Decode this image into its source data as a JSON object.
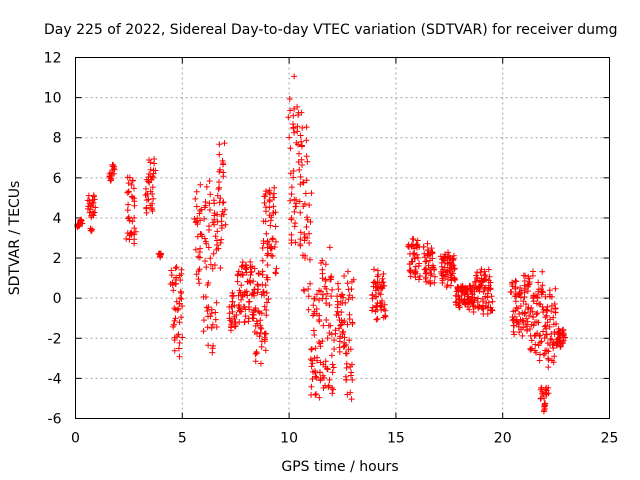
{
  "chart_data": {
    "type": "scatter",
    "title": "Day 225 of 2022, Sidereal Day-to-day VTEC variation (SDTVAR) for receiver dumg",
    "xlabel": "GPS time / hours",
    "ylabel": "SDTVAR / TECUs",
    "xlim": [
      0,
      25
    ],
    "ylim": [
      -6,
      12
    ],
    "x_ticks": [
      0,
      5,
      10,
      15,
      20,
      25
    ],
    "y_ticks": [
      -6,
      -4,
      -2,
      0,
      2,
      4,
      6,
      8,
      10,
      12
    ],
    "x_tick_labels": [
      "0",
      "5",
      "10",
      "15",
      "20",
      "25"
    ],
    "y_tick_labels": [
      "-6",
      "-4",
      "-2",
      "0",
      "2",
      "4",
      "6",
      "8",
      "10",
      "12"
    ],
    "grid": true,
    "marker": "+",
    "color": "#ff0000",
    "segments": [
      {
        "x0": 0.1,
        "x1": 0.3,
        "y": [
          3.5,
          4.0
        ]
      },
      {
        "x0": 0.6,
        "x1": 0.9,
        "y": [
          3.3,
          5.3
        ]
      },
      {
        "x0": 1.6,
        "x1": 1.8,
        "y": [
          5.8,
          6.8
        ]
      },
      {
        "x0": 2.4,
        "x1": 2.8,
        "y": [
          2.3,
          6.3
        ]
      },
      {
        "x0": 3.3,
        "x1": 3.7,
        "y": [
          4.0,
          7.0
        ]
      },
      {
        "x0": 3.9,
        "x1": 4.0,
        "y": [
          2.0,
          2.6
        ]
      },
      {
        "x0": 4.5,
        "x1": 5.0,
        "y": [
          -3.0,
          2.0
        ]
      },
      {
        "x0": 5.6,
        "x1": 5.9,
        "y": [
          -0.5,
          5.8
        ]
      },
      {
        "x0": 6.0,
        "x1": 6.6,
        "y": [
          -3.5,
          6.2
        ]
      },
      {
        "x0": 6.6,
        "x1": 7.0,
        "y": [
          1.5,
          7.8
        ]
      },
      {
        "x0": 7.2,
        "x1": 7.5,
        "y": [
          -1.8,
          0.5
        ]
      },
      {
        "x0": 7.6,
        "x1": 8.3,
        "y": [
          -1.5,
          2.2
        ]
      },
      {
        "x0": 8.3,
        "x1": 9.0,
        "y": [
          -3.3,
          1.8
        ]
      },
      {
        "x0": 8.8,
        "x1": 9.4,
        "y": [
          1.2,
          5.8
        ]
      },
      {
        "x0": 10.0,
        "x1": 10.6,
        "y": [
          1.5,
          11.5
        ]
      },
      {
        "x0": 10.6,
        "x1": 11.0,
        "y": [
          -1.0,
          9.0
        ]
      },
      {
        "x0": 11.0,
        "x1": 11.5,
        "y": [
          -5.2,
          0.5
        ]
      },
      {
        "x0": 11.5,
        "x1": 12.1,
        "y": [
          -5.3,
          2.8
        ]
      },
      {
        "x0": 12.2,
        "x1": 12.6,
        "y": [
          -3.0,
          0.8
        ]
      },
      {
        "x0": 12.6,
        "x1": 13.0,
        "y": [
          -5.3,
          1.5
        ]
      },
      {
        "x0": 13.9,
        "x1": 14.5,
        "y": [
          -1.2,
          1.5
        ]
      },
      {
        "x0": 15.6,
        "x1": 16.1,
        "y": [
          0.8,
          3.2
        ]
      },
      {
        "x0": 16.3,
        "x1": 16.8,
        "y": [
          0.5,
          2.8
        ]
      },
      {
        "x0": 17.1,
        "x1": 17.8,
        "y": [
          0.5,
          2.5
        ]
      },
      {
        "x0": 17.8,
        "x1": 18.6,
        "y": [
          -0.6,
          0.8
        ]
      },
      {
        "x0": 18.6,
        "x1": 19.5,
        "y": [
          -0.8,
          1.5
        ]
      },
      {
        "x0": 20.4,
        "x1": 21.2,
        "y": [
          -2.0,
          1.2
        ]
      },
      {
        "x0": 21.2,
        "x1": 22.0,
        "y": [
          -3.2,
          1.5
        ]
      },
      {
        "x0": 21.8,
        "x1": 22.1,
        "y": [
          -5.7,
          -4.3
        ]
      },
      {
        "x0": 22.0,
        "x1": 22.5,
        "y": [
          -3.5,
          0.5
        ]
      },
      {
        "x0": 22.5,
        "x1": 22.9,
        "y": [
          -2.5,
          -1.5
        ]
      }
    ]
  }
}
